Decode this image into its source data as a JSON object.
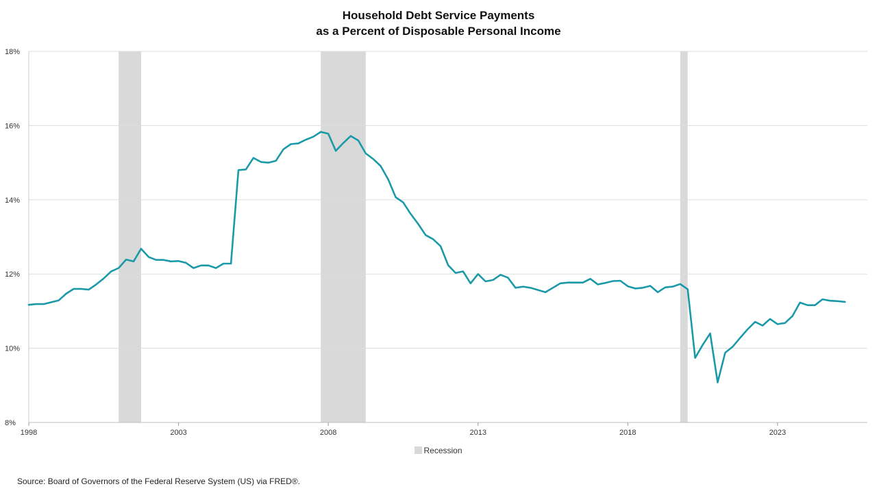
{
  "chart_data": {
    "type": "line",
    "title_line1": "Household Debt Service Payments",
    "title_line2": "as a Percent of Disposable Personal Income",
    "xlabel": "",
    "ylabel": "",
    "xlim": [
      1998.0,
      2026.0
    ],
    "ylim": [
      8,
      18
    ],
    "y_ticks": [
      8,
      10,
      12,
      14,
      16,
      18
    ],
    "y_tick_labels": [
      "8%",
      "10%",
      "12%",
      "14%",
      "16%",
      "18%"
    ],
    "x_ticks": [
      1998,
      2003,
      2008,
      2013,
      2018,
      2023
    ],
    "x_tick_labels": [
      "1998",
      "2003",
      "2008",
      "2013",
      "2018",
      "2023"
    ],
    "grid": true,
    "line_color": "#1a9aa8",
    "recession_color": "#d9d9d9",
    "recessions": [
      [
        2001.0,
        2001.75
      ],
      [
        2007.75,
        2009.25
      ],
      [
        2019.75,
        2020.0
      ]
    ],
    "legend": {
      "position": "bottom-center",
      "entries": [
        {
          "label": "Recession",
          "color": "#d9d9d9"
        }
      ]
    },
    "series": [
      {
        "x": [
          1998.0,
          1998.25,
          1998.5,
          1998.75,
          1999.0,
          1999.25,
          1999.5,
          1999.75,
          2000.0,
          2000.25,
          2000.5,
          2000.75,
          2001.0,
          2001.25,
          2001.5,
          2001.75,
          2002.0,
          2002.25,
          2002.5,
          2002.75,
          2003.0,
          2003.25,
          2003.5,
          2003.75,
          2004.0,
          2004.25,
          2004.5,
          2004.75,
          2005.0,
          2005.25,
          2005.5,
          2005.75,
          2006.0,
          2006.25,
          2006.5,
          2006.75,
          2007.0,
          2007.25,
          2007.5,
          2007.75,
          2008.0,
          2008.25,
          2008.5,
          2008.75,
          2009.0,
          2009.25,
          2009.5,
          2009.75,
          2010.0,
          2010.25,
          2010.5,
          2010.75,
          2011.0,
          2011.25,
          2011.5,
          2011.75,
          2012.0,
          2012.25,
          2012.5,
          2012.75,
          2013.0,
          2013.25,
          2013.5,
          2013.75,
          2014.0,
          2014.25,
          2014.5,
          2014.75,
          2015.0,
          2015.25,
          2015.5,
          2015.75,
          2016.0,
          2016.25,
          2016.5,
          2016.75,
          2017.0,
          2017.25,
          2017.5,
          2017.75,
          2018.0,
          2018.25,
          2018.5,
          2018.75,
          2019.0,
          2019.25,
          2019.5,
          2019.75,
          2020.0,
          2020.25,
          2020.5,
          2020.75,
          2021.0,
          2021.25,
          2021.5,
          2021.75,
          2022.0,
          2022.25,
          2022.5,
          2022.75,
          2023.0,
          2023.25,
          2023.5,
          2023.75,
          2024.0,
          2024.25,
          2024.5,
          2024.75,
          2025.0,
          2025.25
        ],
        "values": [
          11.17,
          11.19,
          11.19,
          11.24,
          11.29,
          11.47,
          11.6,
          11.6,
          11.58,
          11.72,
          11.88,
          12.07,
          12.16,
          12.39,
          12.34,
          12.68,
          12.46,
          12.38,
          12.38,
          12.34,
          12.35,
          12.3,
          12.16,
          12.23,
          12.23,
          12.16,
          12.28,
          12.28,
          14.8,
          14.82,
          15.13,
          15.02,
          15.0,
          15.05,
          15.36,
          15.5,
          15.52,
          15.62,
          15.7,
          15.83,
          15.78,
          15.32,
          15.53,
          15.72,
          15.6,
          15.25,
          15.1,
          14.91,
          14.55,
          14.07,
          13.93,
          13.62,
          13.35,
          13.05,
          12.94,
          12.75,
          12.24,
          12.03,
          12.07,
          11.75,
          12.0,
          11.8,
          11.84,
          11.98,
          11.9,
          11.63,
          11.66,
          11.63,
          11.57,
          11.51,
          11.63,
          11.75,
          11.77,
          11.77,
          11.77,
          11.87,
          11.72,
          11.76,
          11.81,
          11.82,
          11.67,
          11.61,
          11.63,
          11.68,
          11.51,
          11.64,
          11.66,
          11.73,
          11.59,
          9.74,
          10.09,
          10.4,
          9.08,
          9.88,
          10.04,
          10.28,
          10.51,
          10.71,
          10.61,
          10.79,
          10.65,
          10.68,
          10.87,
          11.23,
          11.16,
          11.16,
          11.32,
          11.28,
          11.27,
          11.25
        ]
      }
    ]
  },
  "source": "Source: Board of Governors of the Federal Reserve System (US) via FRED®."
}
